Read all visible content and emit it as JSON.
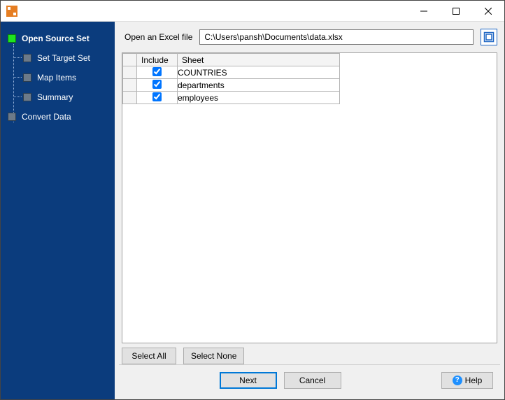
{
  "window": {
    "title": ""
  },
  "sidebar": {
    "items": [
      {
        "label": "Open Source Set",
        "level": 0,
        "active": true
      },
      {
        "label": "Set Target Set",
        "level": 1,
        "active": false
      },
      {
        "label": "Map Items",
        "level": 1,
        "active": false
      },
      {
        "label": "Summary",
        "level": 1,
        "active": false
      },
      {
        "label": "Convert Data",
        "level": 0,
        "active": false
      }
    ]
  },
  "file": {
    "label": "Open an Excel file",
    "path": "C:\\Users\\pansh\\Documents\\data.xlsx"
  },
  "grid": {
    "columns": {
      "include": "Include",
      "sheet": "Sheet"
    },
    "rows": [
      {
        "include": true,
        "sheet": "COUNTRIES"
      },
      {
        "include": true,
        "sheet": "departments"
      },
      {
        "include": true,
        "sheet": "employees"
      }
    ]
  },
  "buttons": {
    "select_all": "Select All",
    "select_none": "Select None",
    "next": "Next",
    "cancel": "Cancel",
    "help": "Help"
  },
  "colors": {
    "sidebar_bg": "#0b3c7d",
    "active_node": "#1fe41f",
    "primary_border": "#0078d7"
  }
}
